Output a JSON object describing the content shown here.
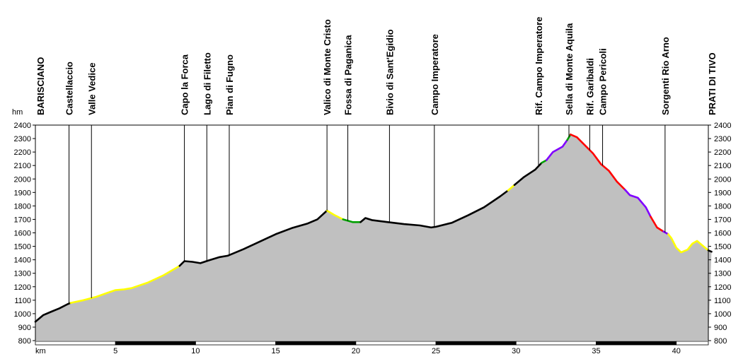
{
  "chart_data": {
    "type": "area",
    "title": "",
    "xlabel": "km",
    "ylabel": "hm",
    "xlim": [
      0,
      42
    ],
    "ylim": [
      800,
      2400
    ],
    "x_ticks": [
      5,
      10,
      15,
      20,
      25,
      30,
      35,
      40
    ],
    "y_ticks": [
      800,
      900,
      1000,
      1100,
      1200,
      1300,
      1400,
      1500,
      1600,
      1700,
      1800,
      1900,
      2000,
      2100,
      2200,
      2300,
      2400
    ],
    "grid": false,
    "fill_color": "#c0c0c0",
    "waypoints": [
      {
        "name": "BARISCIANO",
        "km": 0
      },
      {
        "name": "Castellaccio",
        "km": 2.1
      },
      {
        "name": "Valle Vedice",
        "km": 3.5
      },
      {
        "name": "Capo la Forca",
        "km": 9.3
      },
      {
        "name": "Lago di Filetto",
        "km": 10.7
      },
      {
        "name": "Pian di Fugno",
        "km": 12.1
      },
      {
        "name": "Valico di Monte Cristo",
        "km": 18.2
      },
      {
        "name": "Fossa di Paganica",
        "km": 19.5
      },
      {
        "name": "Bivio di Sant'Egidio",
        "km": 22.1
      },
      {
        "name": "Campo Imperatore",
        "km": 24.9
      },
      {
        "name": "Rif. Campo Imperatore",
        "km": 31.4
      },
      {
        "name": "Sella di Monte Aquila",
        "km": 33.3
      },
      {
        "name": "Rif. Garibaldi",
        "km": 34.6
      },
      {
        "name": "Campo Pericoli",
        "km": 35.4
      },
      {
        "name": "Sorgenti Rio Arno",
        "km": 39.3
      },
      {
        "name": "PRATI DI TIVO",
        "km": 42
      }
    ],
    "segments": [
      {
        "color": "#000000",
        "points": [
          [
            0,
            940
          ],
          [
            0.5,
            990
          ],
          [
            1,
            1015
          ],
          [
            1.5,
            1040
          ],
          [
            2,
            1070
          ],
          [
            2.2,
            1080
          ]
        ]
      },
      {
        "color": "#ffff00",
        "points": [
          [
            2.2,
            1080
          ],
          [
            3,
            1100
          ],
          [
            3.8,
            1125
          ],
          [
            4.5,
            1155
          ],
          [
            5,
            1175
          ],
          [
            5.5,
            1180
          ],
          [
            6,
            1190
          ],
          [
            7,
            1230
          ],
          [
            8,
            1285
          ],
          [
            8.5,
            1320
          ],
          [
            9,
            1355
          ]
        ]
      },
      {
        "color": "#000000",
        "points": [
          [
            9,
            1355
          ],
          [
            9.3,
            1390
          ],
          [
            9.8,
            1385
          ],
          [
            10.3,
            1375
          ],
          [
            10.8,
            1395
          ],
          [
            11.5,
            1420
          ],
          [
            12,
            1430
          ],
          [
            13,
            1480
          ],
          [
            14,
            1535
          ],
          [
            15,
            1590
          ],
          [
            16,
            1635
          ],
          [
            17,
            1670
          ],
          [
            17.6,
            1700
          ],
          [
            18.2,
            1765
          ]
        ]
      },
      {
        "color": "#ffff00",
        "points": [
          [
            18.2,
            1765
          ],
          [
            18.7,
            1730
          ],
          [
            19.2,
            1700
          ]
        ]
      },
      {
        "color": "#00a000",
        "points": [
          [
            19.2,
            1700
          ],
          [
            19.8,
            1680
          ],
          [
            20.3,
            1680
          ]
        ]
      },
      {
        "color": "#000000",
        "points": [
          [
            20.3,
            1680
          ],
          [
            20.6,
            1710
          ],
          [
            21,
            1695
          ],
          [
            22,
            1680
          ],
          [
            23,
            1665
          ],
          [
            24,
            1655
          ],
          [
            24.7,
            1640
          ],
          [
            25,
            1645
          ],
          [
            26,
            1675
          ],
          [
            27,
            1730
          ],
          [
            28,
            1790
          ],
          [
            29,
            1870
          ],
          [
            29.5,
            1915
          ]
        ]
      },
      {
        "color": "#ffff00",
        "points": [
          [
            29.5,
            1915
          ],
          [
            29.9,
            1955
          ]
        ]
      },
      {
        "color": "#000000",
        "points": [
          [
            29.9,
            1955
          ],
          [
            30.5,
            2015
          ],
          [
            31.2,
            2070
          ],
          [
            31.6,
            2120
          ]
        ]
      },
      {
        "color": "#00a000",
        "points": [
          [
            31.6,
            2120
          ],
          [
            31.9,
            2140
          ]
        ]
      },
      {
        "color": "#8000ff",
        "points": [
          [
            31.9,
            2140
          ],
          [
            32.3,
            2200
          ],
          [
            32.9,
            2240
          ],
          [
            33.2,
            2290
          ]
        ]
      },
      {
        "color": "#00a000",
        "points": [
          [
            33.2,
            2290
          ],
          [
            33.4,
            2330
          ]
        ]
      },
      {
        "color": "#ff0000",
        "points": [
          [
            33.4,
            2330
          ],
          [
            33.8,
            2310
          ],
          [
            34.3,
            2250
          ],
          [
            34.8,
            2190
          ],
          [
            35.3,
            2110
          ],
          [
            35.8,
            2060
          ],
          [
            36.3,
            1980
          ],
          [
            36.8,
            1920
          ]
        ]
      },
      {
        "color": "#8000ff",
        "points": [
          [
            36.8,
            1920
          ],
          [
            37.1,
            1880
          ],
          [
            37.6,
            1860
          ],
          [
            38.1,
            1790
          ],
          [
            38.4,
            1720
          ]
        ]
      },
      {
        "color": "#ff0000",
        "points": [
          [
            38.4,
            1720
          ],
          [
            38.8,
            1640
          ],
          [
            39.2,
            1610
          ]
        ]
      },
      {
        "color": "#8000ff",
        "points": [
          [
            39.2,
            1610
          ],
          [
            39.5,
            1590
          ]
        ]
      },
      {
        "color": "#ffff00",
        "points": [
          [
            39.5,
            1590
          ],
          [
            39.7,
            1560
          ],
          [
            40,
            1490
          ],
          [
            40.3,
            1455
          ],
          [
            40.7,
            1475
          ],
          [
            41,
            1520
          ],
          [
            41.3,
            1540
          ],
          [
            41.7,
            1500
          ],
          [
            42,
            1470
          ]
        ]
      },
      {
        "color": "#000000",
        "points": [
          [
            42,
            1470
          ],
          [
            42.2,
            1460
          ]
        ]
      }
    ]
  }
}
